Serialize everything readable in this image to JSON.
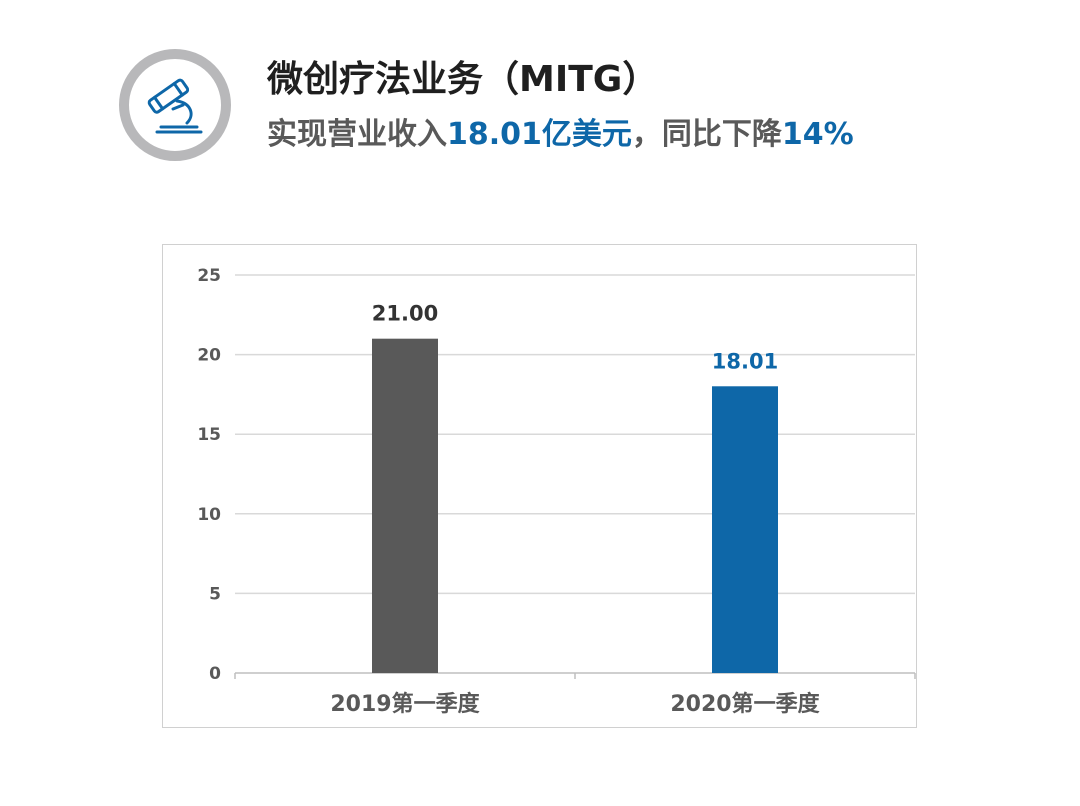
{
  "header": {
    "title": "微创疗法业务（MITG）",
    "subtitle_parts": {
      "p1": "实现营业收入",
      "p2": "18.01亿美元",
      "p3": "，同比下降",
      "p4": "14%"
    }
  },
  "logo": {
    "icon": "microscope-icon",
    "ring_color": "#b8b8ba",
    "icon_color": "#0e67a8"
  },
  "chart_data": {
    "type": "bar",
    "categories": [
      "2019第一季度",
      "2020第一季度"
    ],
    "values": [
      21.0,
      18.01
    ],
    "data_labels": [
      "21.00",
      "18.01"
    ],
    "colors": [
      "#595959",
      "#0e67a8"
    ],
    "ylim": [
      0,
      25
    ],
    "yticks": [
      0,
      5,
      10,
      15,
      20,
      25
    ],
    "grid": true,
    "legend": "none",
    "title": "",
    "xlabel": "",
    "ylabel": ""
  }
}
